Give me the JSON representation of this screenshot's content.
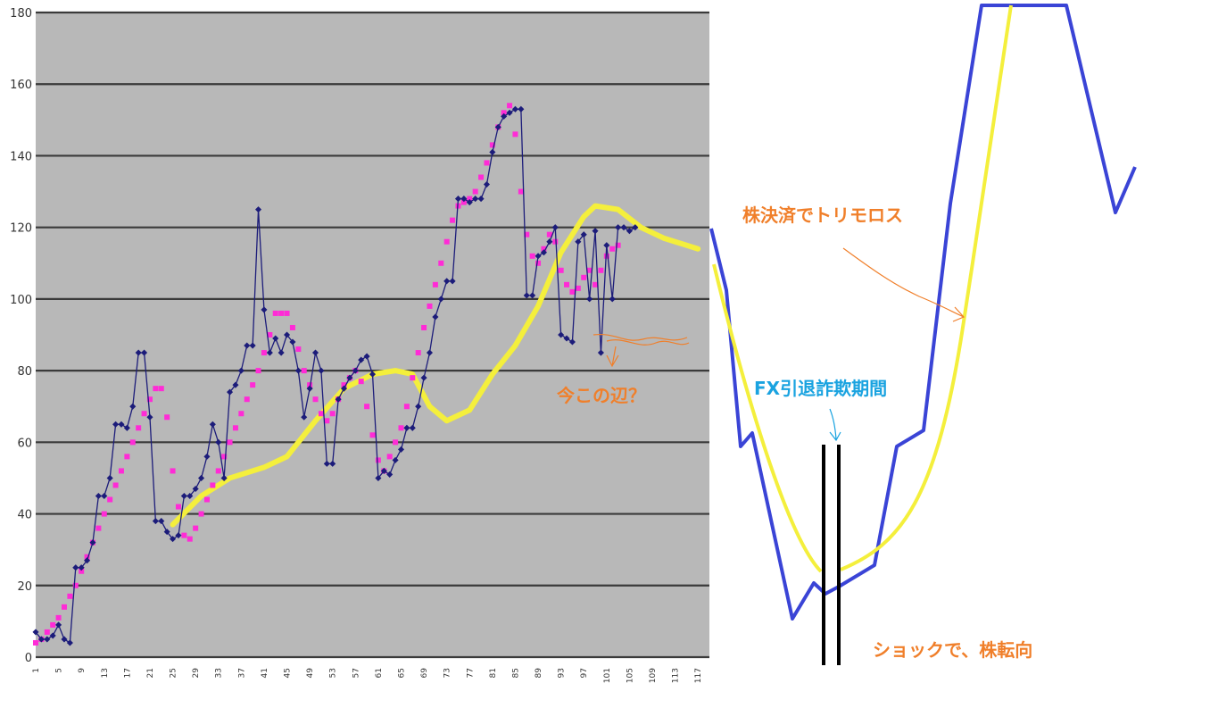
{
  "colors": {
    "plot_bg": "#b8b8b8",
    "grid": "#3a3a3a",
    "navy": "#1c1c7a",
    "magenta": "#ff2bd6",
    "yellow": "#f4ef3c",
    "blue_sketch": "#3a44d6",
    "orange": "#f07f2a",
    "cyan": "#1aa3e0",
    "black": "#000000"
  },
  "annotations": {
    "kessai": "株決済でトリモロス",
    "imakono": "今この辺？",
    "fx": "FX引退詐欺期間",
    "shock": "ショックで、株転向"
  },
  "chart_data": {
    "type": "line",
    "ylim": [
      0,
      180
    ],
    "yticks": [
      0,
      20,
      40,
      60,
      80,
      100,
      120,
      140,
      160,
      180
    ],
    "xlim": [
      1,
      119
    ],
    "xticks": [
      "1",
      "5",
      "9",
      "13",
      "17",
      "21",
      "25",
      "29",
      "33",
      "37",
      "41",
      "45",
      "49",
      "53",
      "57",
      "61",
      "65",
      "69",
      "73",
      "77",
      "81",
      "85",
      "89",
      "93",
      "97",
      "101",
      "105",
      "109",
      "113",
      "117"
    ],
    "grid": true,
    "series": [
      {
        "role": "price",
        "color": "#1c1c7a",
        "values": [
          7,
          5,
          5,
          6,
          9,
          5,
          4,
          25,
          25,
          27,
          32,
          45,
          45,
          50,
          65,
          65,
          64,
          70,
          85,
          85,
          67,
          38,
          38,
          35,
          33,
          34,
          45,
          45,
          47,
          50,
          56,
          65,
          60,
          50,
          74,
          76,
          80,
          87,
          87,
          125,
          97,
          85,
          89,
          85,
          90,
          88,
          80,
          67,
          75,
          85,
          80,
          54,
          54,
          72,
          75,
          78,
          80,
          83,
          84,
          79,
          50,
          52,
          51,
          55,
          58,
          64,
          64,
          70,
          78,
          85,
          95,
          100,
          105,
          105,
          128,
          128,
          127,
          128,
          128,
          132,
          141,
          148,
          151,
          152,
          153,
          153,
          101,
          101,
          112,
          113,
          116,
          120,
          90,
          89,
          88,
          116,
          118,
          100,
          119,
          85,
          115,
          100,
          120,
          120,
          119,
          120
        ]
      },
      {
        "role": "moving-average",
        "color": "#ff2bd6",
        "values": [
          4,
          5,
          7,
          9,
          11,
          14,
          17,
          20,
          24,
          28,
          32,
          36,
          40,
          44,
          48,
          52,
          56,
          60,
          64,
          68,
          72,
          75,
          75,
          67,
          52,
          42,
          34,
          33,
          36,
          40,
          44,
          48,
          52,
          56,
          60,
          64,
          68,
          72,
          76,
          80,
          85,
          90,
          96,
          96,
          96,
          92,
          86,
          80,
          76,
          72,
          68,
          66,
          68,
          72,
          76,
          78,
          80,
          77,
          70,
          62,
          55,
          52,
          56,
          60,
          64,
          70,
          78,
          85,
          92,
          98,
          104,
          110,
          116,
          122,
          126,
          127,
          128,
          130,
          134,
          138,
          143,
          148,
          152,
          154,
          146,
          130,
          118,
          112,
          110,
          114,
          118,
          116,
          108,
          104,
          102,
          103,
          106,
          108,
          104,
          108,
          112,
          114,
          115
        ]
      },
      {
        "role": "long-trend",
        "color": "#f4ef3c",
        "values": [
          [
            25,
            37
          ],
          [
            30,
            45
          ],
          [
            35,
            50
          ],
          [
            41,
            53
          ],
          [
            45,
            56
          ],
          [
            50,
            66
          ],
          [
            55,
            75
          ],
          [
            60,
            79
          ],
          [
            64,
            80
          ],
          [
            67,
            79
          ],
          [
            70,
            70
          ],
          [
            73,
            66
          ],
          [
            77,
            69
          ],
          [
            81,
            79
          ],
          [
            85,
            87
          ],
          [
            89,
            98
          ],
          [
            93,
            113
          ],
          [
            97,
            123
          ],
          [
            99,
            126
          ],
          [
            103,
            125
          ],
          [
            107,
            120
          ],
          [
            111,
            117
          ],
          [
            117,
            114
          ]
        ]
      }
    ]
  }
}
